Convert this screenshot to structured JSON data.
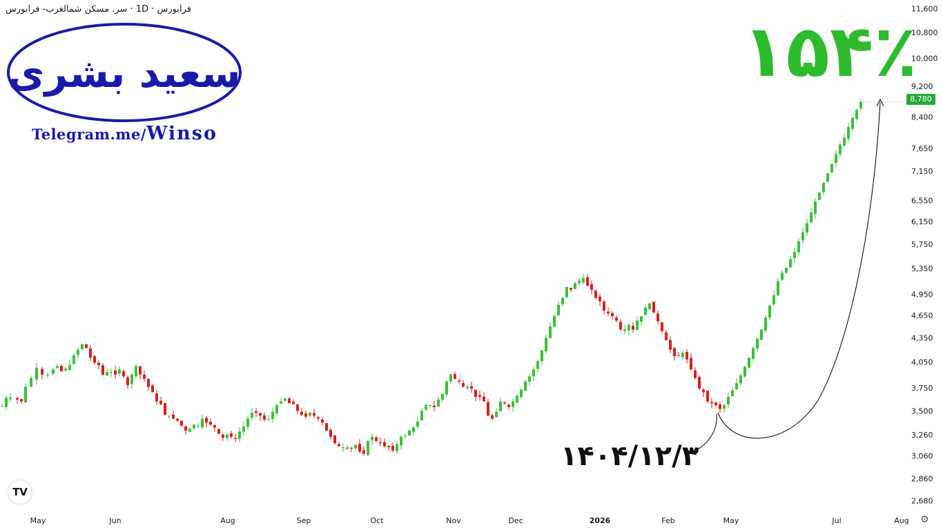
{
  "header": {
    "symbol_title": "فرابورس · 1D · سر. مسکن شمالغرب- فرابورس"
  },
  "branding": {
    "logo_text": "سعید بشری",
    "telegram_prefix": "Telegram.me/",
    "telegram_handle": "Winso",
    "logo_color": "#1a1aa8"
  },
  "annotations": {
    "gain_text": "۱۵۴٪",
    "date_text": "۱۴۰۴/۱۲/۳",
    "gain_color": "#2dbb2d"
  },
  "price_badge": "8,780",
  "toolbar": {
    "tv_logo": "TV",
    "settings_icon": "gear-icon"
  },
  "chart_data": {
    "type": "candlestick",
    "y_scale": "log",
    "ylim": [
      2600,
      11900
    ],
    "y_ticks": [
      "11,600",
      "10,800",
      "10,000",
      "9,200",
      "8,400",
      "7,650",
      "7,150",
      "6,550",
      "6,150",
      "5,750",
      "5,350",
      "4,950",
      "4,650",
      "4,350",
      "4,050",
      "3,750",
      "3,500",
      "3,260",
      "3,060",
      "2,860",
      "2,680"
    ],
    "x_labels": [
      "May",
      "Jun",
      "Aug",
      "Sep",
      "Oct",
      "Nov",
      "Dec",
      "2026",
      "Feb",
      "May",
      "Jul",
      "Aug"
    ],
    "up_color": "#3cbf3c",
    "down_color": "#d91e1e",
    "last_price": 8780,
    "close_path": [
      [
        0,
        3550
      ],
      [
        6,
        3640
      ],
      [
        12,
        3640
      ],
      [
        22,
        3620
      ],
      [
        28,
        3600
      ],
      [
        34,
        3760
      ],
      [
        42,
        3860
      ],
      [
        50,
        3980
      ],
      [
        58,
        3900
      ],
      [
        66,
        3900
      ],
      [
        74,
        3960
      ],
      [
        80,
        4000
      ],
      [
        86,
        3940
      ],
      [
        92,
        3970
      ],
      [
        98,
        4010
      ],
      [
        104,
        4130
      ],
      [
        110,
        4200
      ],
      [
        116,
        4270
      ],
      [
        122,
        4220
      ],
      [
        128,
        4100
      ],
      [
        134,
        4040
      ],
      [
        140,
        4010
      ],
      [
        146,
        3900
      ],
      [
        152,
        3930
      ],
      [
        158,
        3930
      ],
      [
        164,
        3900
      ],
      [
        170,
        3960
      ],
      [
        176,
        3880
      ],
      [
        182,
        3780
      ],
      [
        188,
        3900
      ],
      [
        194,
        4000
      ],
      [
        200,
        3900
      ],
      [
        206,
        3850
      ],
      [
        212,
        3760
      ],
      [
        218,
        3700
      ],
      [
        224,
        3600
      ],
      [
        230,
        3570
      ],
      [
        236,
        3460
      ],
      [
        242,
        3450
      ],
      [
        248,
        3420
      ],
      [
        254,
        3400
      ],
      [
        260,
        3350
      ],
      [
        266,
        3300
      ],
      [
        272,
        3320
      ],
      [
        278,
        3360
      ],
      [
        284,
        3350
      ],
      [
        290,
        3420
      ],
      [
        296,
        3380
      ],
      [
        302,
        3360
      ],
      [
        308,
        3330
      ],
      [
        314,
        3270
      ],
      [
        320,
        3230
      ],
      [
        326,
        3260
      ],
      [
        332,
        3240
      ],
      [
        338,
        3220
      ],
      [
        344,
        3290
      ],
      [
        350,
        3340
      ],
      [
        356,
        3420
      ],
      [
        362,
        3480
      ],
      [
        368,
        3480
      ],
      [
        374,
        3450
      ],
      [
        380,
        3410
      ],
      [
        386,
        3420
      ],
      [
        392,
        3490
      ],
      [
        398,
        3560
      ],
      [
        404,
        3600
      ],
      [
        410,
        3630
      ],
      [
        416,
        3580
      ],
      [
        422,
        3570
      ],
      [
        428,
        3500
      ],
      [
        434,
        3460
      ],
      [
        440,
        3440
      ],
      [
        446,
        3480
      ],
      [
        452,
        3450
      ],
      [
        458,
        3420
      ],
      [
        464,
        3380
      ],
      [
        470,
        3300
      ],
      [
        476,
        3240
      ],
      [
        482,
        3180
      ],
      [
        488,
        3150
      ],
      [
        494,
        3140
      ],
      [
        500,
        3140
      ],
      [
        506,
        3130
      ],
      [
        512,
        3160
      ],
      [
        518,
        3100
      ],
      [
        524,
        3080
      ],
      [
        530,
        3200
      ],
      [
        536,
        3240
      ],
      [
        542,
        3200
      ],
      [
        548,
        3180
      ],
      [
        554,
        3150
      ],
      [
        560,
        3140
      ],
      [
        566,
        3110
      ],
      [
        572,
        3170
      ],
      [
        578,
        3240
      ],
      [
        584,
        3250
      ],
      [
        590,
        3300
      ],
      [
        596,
        3330
      ],
      [
        602,
        3390
      ],
      [
        608,
        3500
      ],
      [
        614,
        3560
      ],
      [
        620,
        3560
      ],
      [
        626,
        3540
      ],
      [
        632,
        3620
      ],
      [
        638,
        3680
      ],
      [
        644,
        3820
      ],
      [
        650,
        3900
      ],
      [
        656,
        3850
      ],
      [
        662,
        3820
      ],
      [
        668,
        3760
      ],
      [
        674,
        3760
      ],
      [
        680,
        3740
      ],
      [
        686,
        3650
      ],
      [
        692,
        3650
      ],
      [
        698,
        3600
      ],
      [
        704,
        3450
      ],
      [
        710,
        3420
      ],
      [
        716,
        3490
      ],
      [
        722,
        3600
      ],
      [
        728,
        3580
      ],
      [
        734,
        3540
      ],
      [
        740,
        3600
      ],
      [
        746,
        3660
      ],
      [
        752,
        3730
      ],
      [
        758,
        3820
      ],
      [
        764,
        3880
      ],
      [
        770,
        3960
      ],
      [
        776,
        4060
      ],
      [
        782,
        4190
      ],
      [
        788,
        4350
      ],
      [
        794,
        4500
      ],
      [
        800,
        4640
      ],
      [
        806,
        4800
      ],
      [
        812,
        4900
      ],
      [
        818,
        5060
      ],
      [
        824,
        5020
      ],
      [
        830,
        5120
      ],
      [
        836,
        5160
      ],
      [
        842,
        5200
      ],
      [
        848,
        5080
      ],
      [
        854,
        5020
      ],
      [
        860,
        4900
      ],
      [
        866,
        4850
      ],
      [
        872,
        4720
      ],
      [
        878,
        4680
      ],
      [
        884,
        4640
      ],
      [
        890,
        4580
      ],
      [
        896,
        4460
      ],
      [
        902,
        4460
      ],
      [
        908,
        4520
      ],
      [
        914,
        4460
      ],
      [
        920,
        4580
      ],
      [
        926,
        4640
      ],
      [
        932,
        4760
      ],
      [
        938,
        4820
      ],
      [
        944,
        4690
      ],
      [
        950,
        4570
      ],
      [
        956,
        4440
      ],
      [
        962,
        4320
      ],
      [
        968,
        4200
      ],
      [
        974,
        4120
      ],
      [
        980,
        4120
      ],
      [
        986,
        4160
      ],
      [
        992,
        4080
      ],
      [
        998,
        3960
      ],
      [
        1004,
        3860
      ],
      [
        1010,
        3740
      ],
      [
        1016,
        3700
      ],
      [
        1022,
        3600
      ],
      [
        1028,
        3580
      ],
      [
        1034,
        3560
      ],
      [
        1040,
        3520
      ],
      [
        1046,
        3560
      ],
      [
        1052,
        3650
      ],
      [
        1058,
        3720
      ],
      [
        1064,
        3800
      ],
      [
        1070,
        3890
      ],
      [
        1076,
        3990
      ],
      [
        1082,
        4100
      ],
      [
        1088,
        4220
      ],
      [
        1094,
        4340
      ],
      [
        1100,
        4460
      ],
      [
        1106,
        4620
      ],
      [
        1112,
        4790
      ],
      [
        1118,
        4940
      ],
      [
        1124,
        5150
      ],
      [
        1130,
        5280
      ],
      [
        1136,
        5360
      ],
      [
        1142,
        5500
      ],
      [
        1148,
        5620
      ],
      [
        1154,
        5800
      ],
      [
        1160,
        5960
      ],
      [
        1166,
        6120
      ],
      [
        1172,
        6320
      ],
      [
        1178,
        6530
      ],
      [
        1184,
        6700
      ],
      [
        1190,
        6900
      ],
      [
        1196,
        7100
      ],
      [
        1202,
        7300
      ],
      [
        1208,
        7520
      ],
      [
        1214,
        7740
      ],
      [
        1220,
        7900
      ],
      [
        1226,
        8150
      ],
      [
        1232,
        8380
      ],
      [
        1238,
        8580
      ],
      [
        1244,
        8780
      ]
    ]
  }
}
